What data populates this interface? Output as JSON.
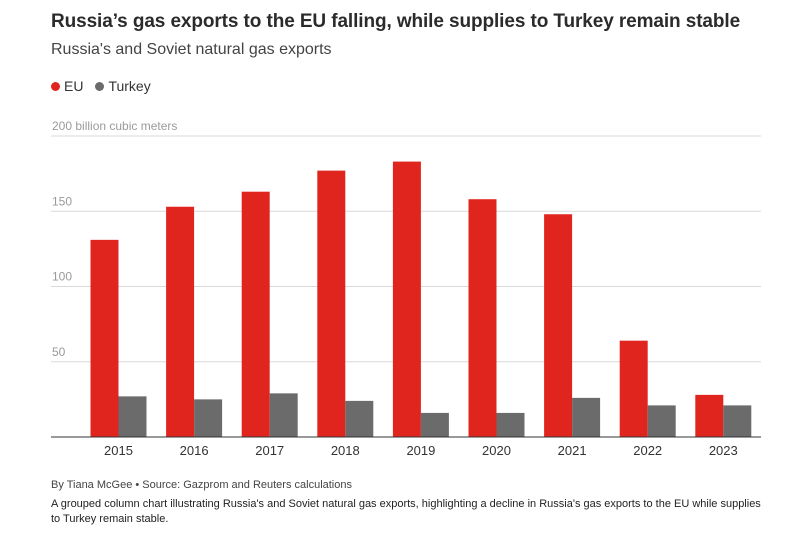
{
  "header": {
    "title": "Russia’s gas exports to the EU falling, while supplies to Turkey remain stable",
    "subtitle": "Russia's and Soviet natural gas exports"
  },
  "legend": [
    {
      "label": "EU",
      "color": "#e0251f"
    },
    {
      "label": "Turkey",
      "color": "#6b6b6b"
    }
  ],
  "footer": {
    "credit": "By Tiana McGee • Source: Gazprom and Reuters calculations",
    "caption": "A grouped column chart illustrating Russia's and Soviet natural gas exports, highlighting a decline in Russia's gas exports to the EU while supplies to Turkey remain stable."
  },
  "chart_data": {
    "type": "bar",
    "title": "Russia’s gas exports to the EU falling, while supplies to Turkey remain stable",
    "subtitle": "Russia's and Soviet natural gas exports",
    "ylabel": "",
    "xlabel": "",
    "ylim": [
      0,
      200
    ],
    "yticks": [
      50,
      100,
      150,
      200
    ],
    "ytick_labels": [
      "50",
      "100",
      "150",
      "200 billion cubic meters"
    ],
    "grid": true,
    "legend_position": "top-left",
    "categories": [
      "2015",
      "2016",
      "2017",
      "2018",
      "2019",
      "2020",
      "2021",
      "2022",
      "2023"
    ],
    "series": [
      {
        "name": "EU",
        "color": "#e0251f",
        "values": [
          131,
          153,
          163,
          177,
          183,
          158,
          148,
          64,
          28
        ]
      },
      {
        "name": "Turkey",
        "color": "#6b6b6b",
        "values": [
          27,
          25,
          29,
          24,
          16,
          16,
          26,
          21,
          21
        ]
      }
    ]
  }
}
